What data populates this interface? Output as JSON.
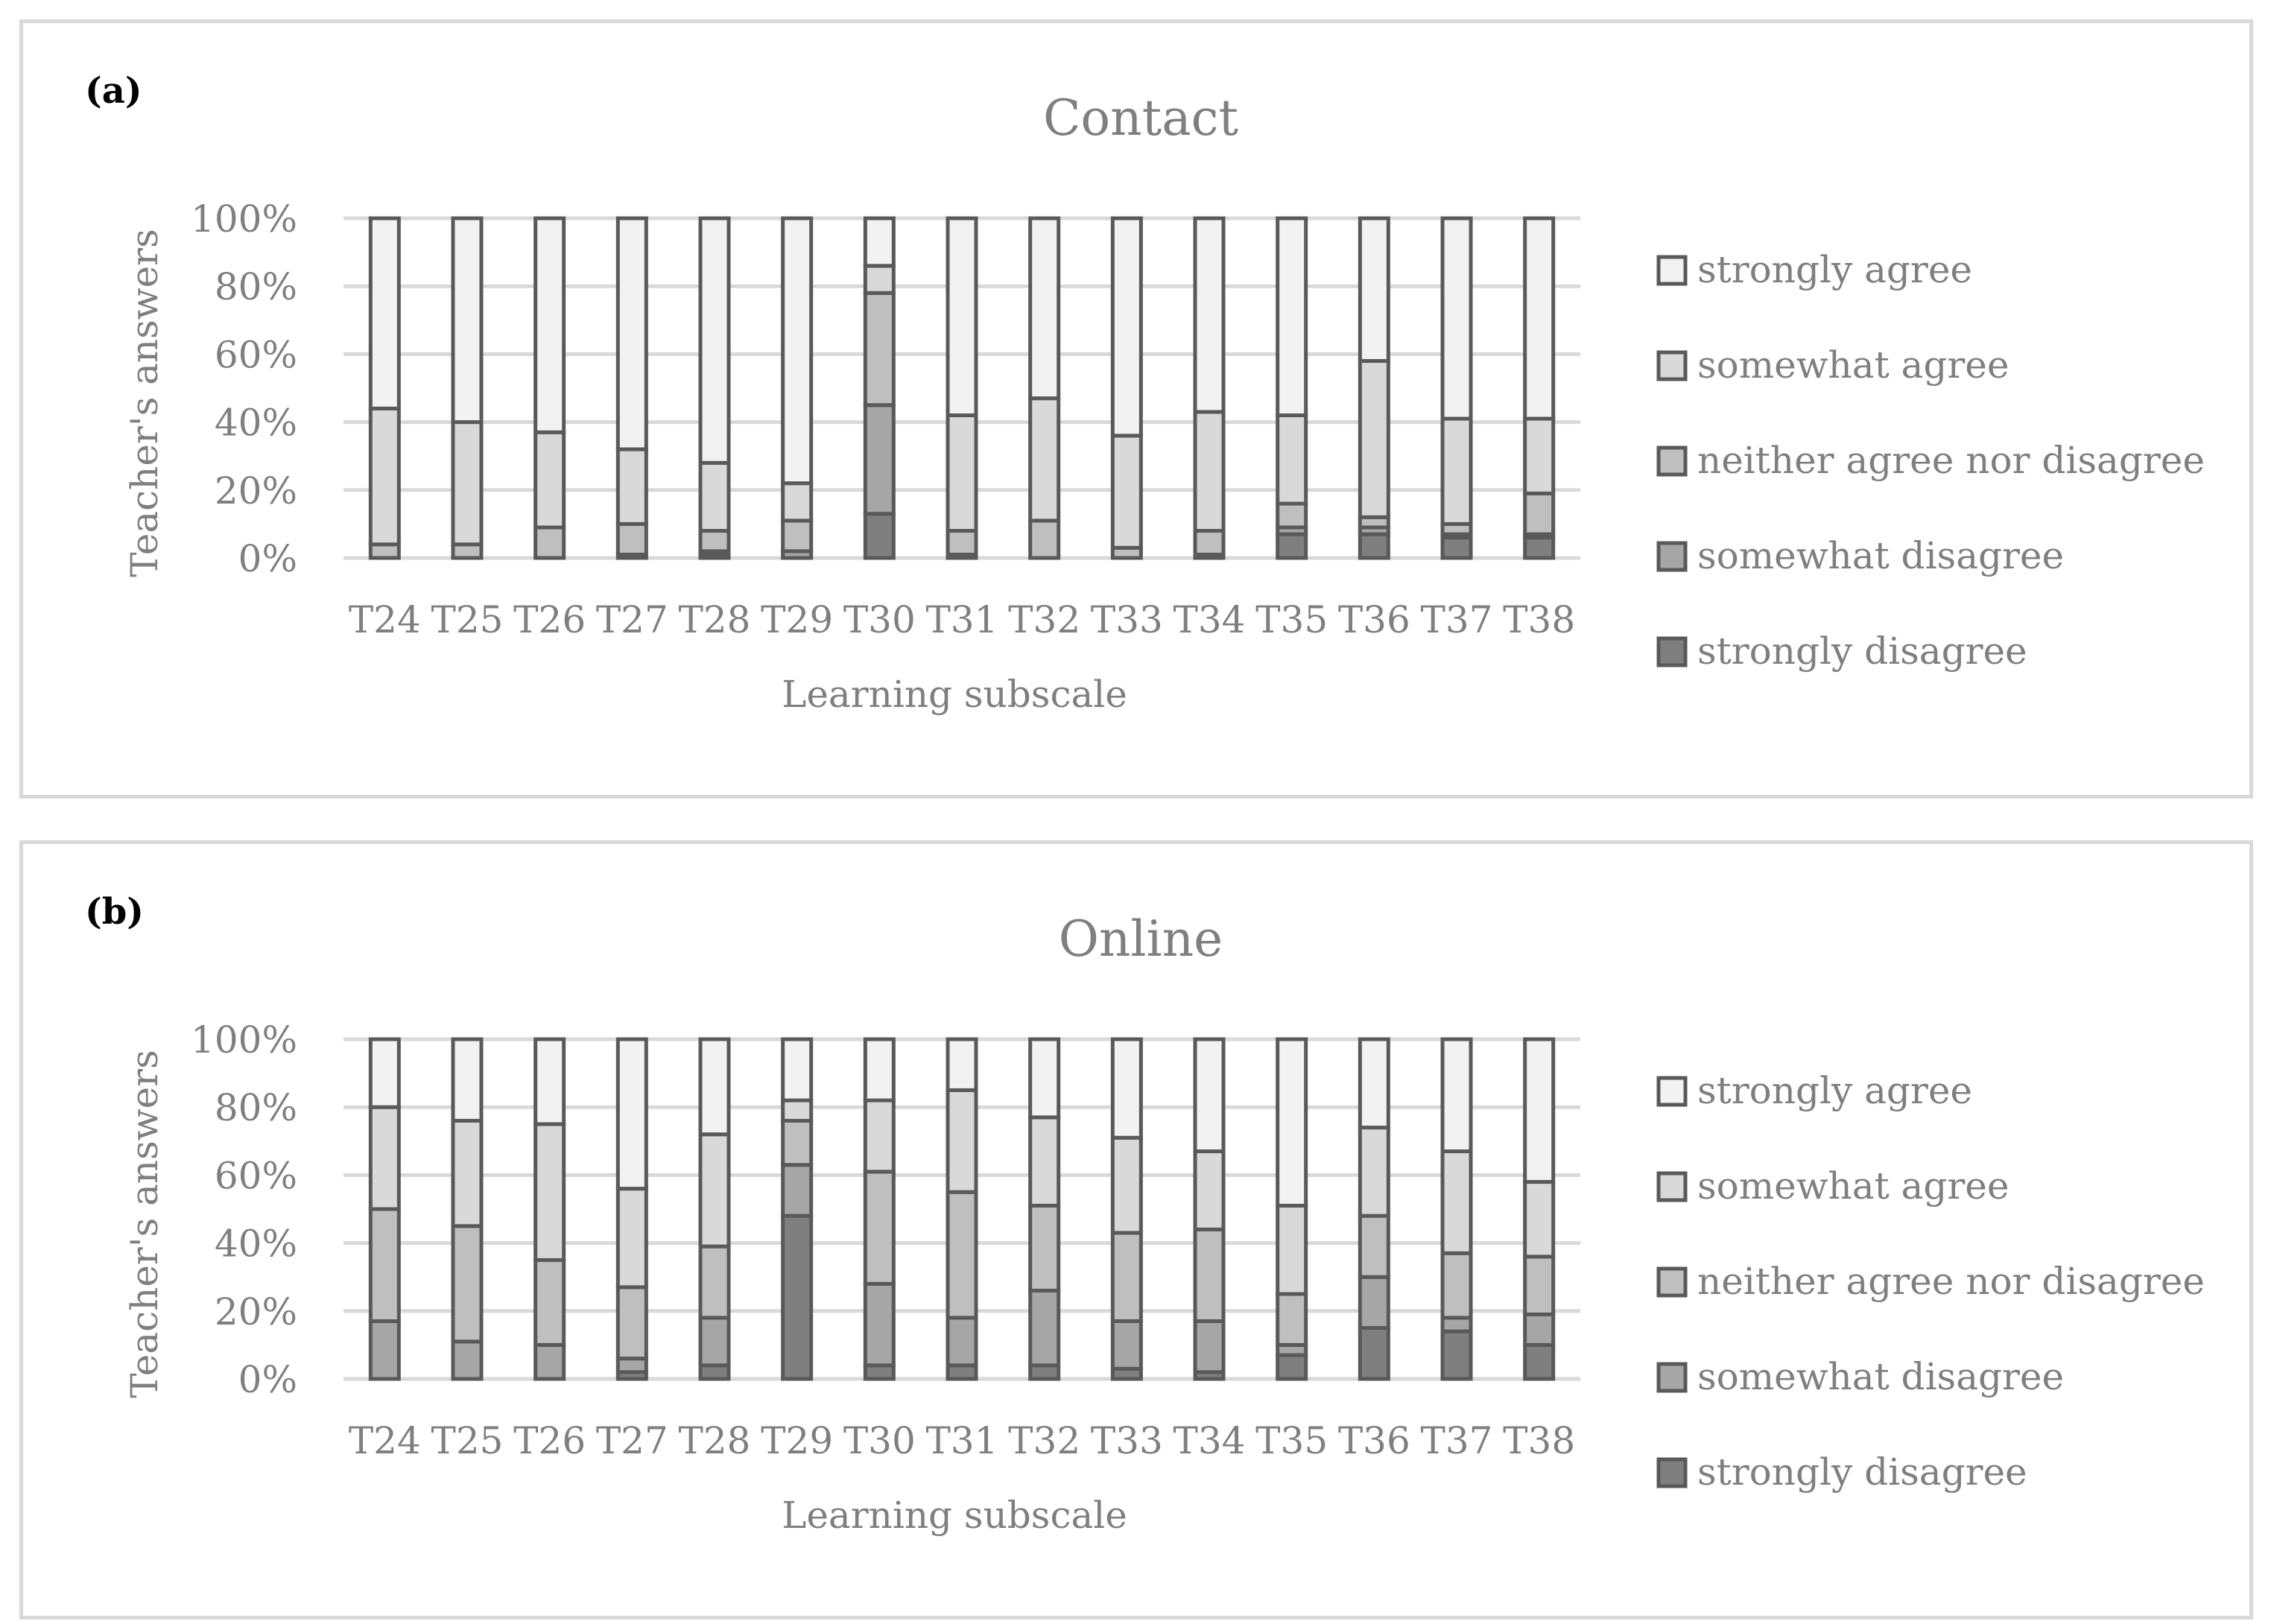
{
  "colors": {
    "strongly_agree": "#f2f2f2",
    "somewhat_agree": "#d9d9d9",
    "neither": "#bfbfbf",
    "somewhat_disagree": "#a6a6a6",
    "strongly_disagree": "#7f7f7f",
    "bar_outline": "#595959",
    "grid": "#d9d9d9",
    "text": "#7f7f7f"
  },
  "chart_data": [
    {
      "panel_label": "(a)",
      "type": "bar",
      "stacked": "percent",
      "title": "Contact",
      "xlabel": "Learning subscale",
      "ylabel": "Teacher's answers",
      "ylim": [
        0,
        100
      ],
      "yticks": [
        "0%",
        "20%",
        "40%",
        "60%",
        "80%",
        "100%"
      ],
      "grid": true,
      "legend_position": "right",
      "categories": [
        "T24",
        "T25",
        "T26",
        "T27",
        "T28",
        "T29",
        "T30",
        "T31",
        "T32",
        "T33",
        "T34",
        "T35",
        "T36",
        "T37",
        "T38"
      ],
      "series": [
        {
          "name": "strongly disagree",
          "color_key": "strongly_disagree",
          "values": [
            0,
            0,
            0,
            0,
            1,
            0,
            13,
            0,
            0,
            0,
            0,
            7,
            7,
            6,
            6
          ]
        },
        {
          "name": "somewhat disagree",
          "color_key": "somewhat_disagree",
          "values": [
            0,
            0,
            0,
            1,
            1,
            2,
            32,
            1,
            0,
            0,
            1,
            2,
            2,
            1,
            1
          ]
        },
        {
          "name": "neither agree nor disagree",
          "color_key": "neither",
          "values": [
            4,
            4,
            9,
            9,
            6,
            9,
            33,
            7,
            11,
            3,
            7,
            7,
            3,
            3,
            12
          ]
        },
        {
          "name": "somewhat agree",
          "color_key": "somewhat_agree",
          "values": [
            40,
            36,
            28,
            22,
            20,
            11,
            8,
            34,
            36,
            33,
            35,
            26,
            46,
            31,
            22
          ]
        },
        {
          "name": "strongly agree",
          "color_key": "strongly_agree",
          "values": [
            56,
            60,
            63,
            68,
            72,
            78,
            14,
            58,
            53,
            64,
            57,
            58,
            42,
            59,
            59
          ]
        }
      ],
      "legend_order": [
        "strongly agree",
        "somewhat agree",
        "neither agree nor disagree",
        "somewhat disagree",
        "strongly disagree"
      ]
    },
    {
      "panel_label": "(b)",
      "type": "bar",
      "stacked": "percent",
      "title": "Online",
      "xlabel": "Learning subscale",
      "ylabel": "Teacher's answers",
      "ylim": [
        0,
        100
      ],
      "yticks": [
        "0%",
        "20%",
        "40%",
        "60%",
        "80%",
        "100%"
      ],
      "grid": true,
      "legend_position": "right",
      "categories": [
        "T24",
        "T25",
        "T26",
        "T27",
        "T28",
        "T29",
        "T30",
        "T31",
        "T32",
        "T33",
        "T34",
        "T35",
        "T36",
        "T37",
        "T38"
      ],
      "series": [
        {
          "name": "strongly disagree",
          "color_key": "strongly_disagree",
          "values": [
            0,
            0,
            0,
            2,
            4,
            48,
            4,
            4,
            4,
            3,
            2,
            7,
            15,
            14,
            10
          ]
        },
        {
          "name": "somewhat disagree",
          "color_key": "somewhat_disagree",
          "values": [
            17,
            11,
            10,
            4,
            14,
            15,
            24,
            14,
            22,
            14,
            15,
            3,
            15,
            4,
            9
          ]
        },
        {
          "name": "neither agree nor disagree",
          "color_key": "neither",
          "values": [
            33,
            34,
            25,
            21,
            21,
            13,
            33,
            37,
            25,
            26,
            27,
            15,
            18,
            19,
            17
          ]
        },
        {
          "name": "somewhat agree",
          "color_key": "somewhat_agree",
          "values": [
            30,
            31,
            40,
            29,
            33,
            6,
            21,
            30,
            26,
            28,
            23,
            26,
            26,
            30,
            22
          ]
        },
        {
          "name": "strongly agree",
          "color_key": "strongly_agree",
          "values": [
            20,
            24,
            25,
            44,
            28,
            18,
            18,
            15,
            23,
            29,
            33,
            49,
            26,
            33,
            42
          ]
        }
      ],
      "legend_order": [
        "strongly agree",
        "somewhat agree",
        "neither agree nor disagree",
        "somewhat disagree",
        "strongly disagree"
      ]
    }
  ]
}
